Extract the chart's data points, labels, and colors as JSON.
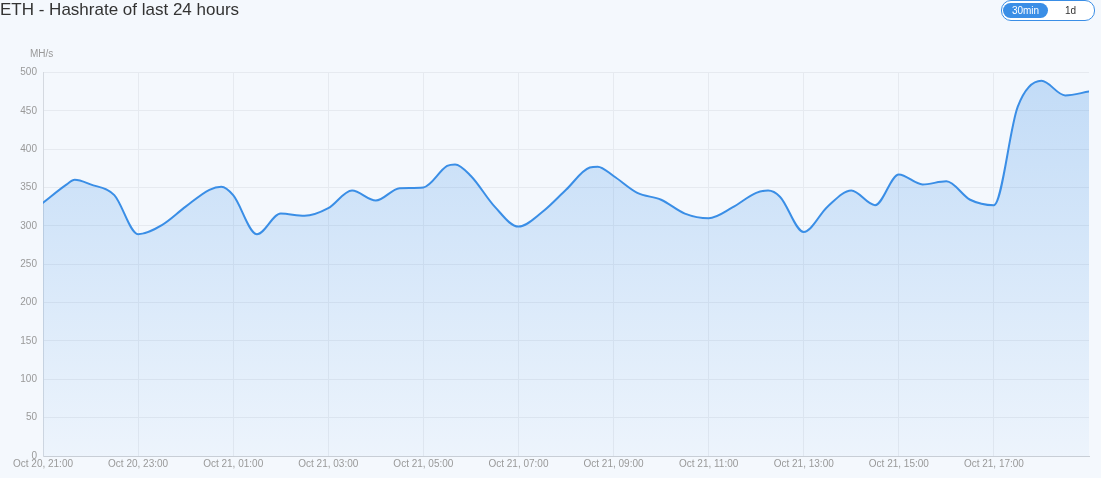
{
  "chart_data": {
    "type": "area",
    "title": "ETH - Hashrate of last 24 hours",
    "ylabel": "MH/s",
    "annotations": [
      "30min",
      "1d"
    ],
    "x": [
      "--10-20T21:00",
      "--10-20T21:30",
      "--10-20T21:40",
      "--10-20T22:00",
      "--10-20T22:30",
      "--10-20T23:00",
      "--10-20T23:30",
      "--10-21T00:00",
      "--10-21T00:30",
      "--10-21T00:45",
      "--10-21T01:00",
      "--10-21T01:30",
      "--10-21T02:00",
      "--10-21T02:30",
      "--10-21T03:00",
      "--10-21T03:30",
      "--10-21T04:00",
      "--10-21T04:30",
      "--10-21T05:00",
      "--10-21T05:30",
      "--10-21T05:40",
      "--10-21T06:00",
      "--10-21T06:30",
      "--10-21T07:00",
      "--10-21T07:30",
      "--10-21T08:00",
      "--10-21T08:30",
      "--10-21T08:40",
      "--10-21T09:00",
      "--10-21T09:30",
      "--10-21T10:00",
      "--10-21T10:30",
      "--10-21T11:00",
      "--10-21T11:30",
      "--10-21T12:00",
      "--10-21T12:15",
      "--10-21T12:30",
      "--10-21T13:00",
      "--10-21T13:30",
      "--10-21T14:00",
      "--10-21T14:30",
      "--10-21T15:00",
      "--10-21T15:30",
      "--10-21T16:00",
      "--10-21T16:30",
      "--10-21T17:00",
      "--10-21T17:30",
      "--10-21T18:00",
      "--10-21T18:30",
      "--10-21T19:00"
    ],
    "values": [
      330,
      354,
      360,
      354,
      340,
      289,
      301,
      325,
      347,
      351,
      340,
      289,
      316,
      313,
      323,
      346,
      333,
      349,
      350,
      378,
      380,
      365,
      325,
      299,
      318,
      347,
      376,
      377,
      365,
      343,
      334,
      316,
      310,
      324,
      343,
      346,
      338,
      292,
      325,
      346,
      327,
      367,
      354,
      358,
      334,
      327,
      455,
      489,
      470,
      475
    ],
    "color": "#3a8ee6",
    "xlim": [
      "--10-20T21:00",
      "--10-21T19:00"
    ],
    "xticks": [
      {
        "value": "--10-20T21:00",
        "label": "Oct 20, 21:00"
      },
      {
        "value": "--10-20T23:00",
        "label": "Oct 20, 23:00"
      },
      {
        "value": "--10-21T01:00",
        "label": "Oct 21, 01:00"
      },
      {
        "value": "--10-21T03:00",
        "label": "Oct 21, 03:00"
      },
      {
        "value": "--10-21T05:00",
        "label": "Oct 21, 05:00"
      },
      {
        "value": "--10-21T07:00",
        "label": "Oct 21, 07:00"
      },
      {
        "value": "--10-21T09:00",
        "label": "Oct 21, 09:00"
      },
      {
        "value": "--10-21T11:00",
        "label": "Oct 21, 11:00"
      },
      {
        "value": "--10-21T13:00",
        "label": "Oct 21, 13:00"
      },
      {
        "value": "--10-21T15:00",
        "label": "Oct 21, 15:00"
      },
      {
        "value": "--10-21T17:00",
        "label": "Oct 21, 17:00"
      }
    ],
    "ylim": [
      0,
      500
    ],
    "yticks": [
      0,
      50,
      100,
      150,
      200,
      250,
      300,
      350,
      400,
      450,
      500
    ],
    "grid": true,
    "legend": false,
    "marker": "none",
    "line_style": "solid"
  }
}
